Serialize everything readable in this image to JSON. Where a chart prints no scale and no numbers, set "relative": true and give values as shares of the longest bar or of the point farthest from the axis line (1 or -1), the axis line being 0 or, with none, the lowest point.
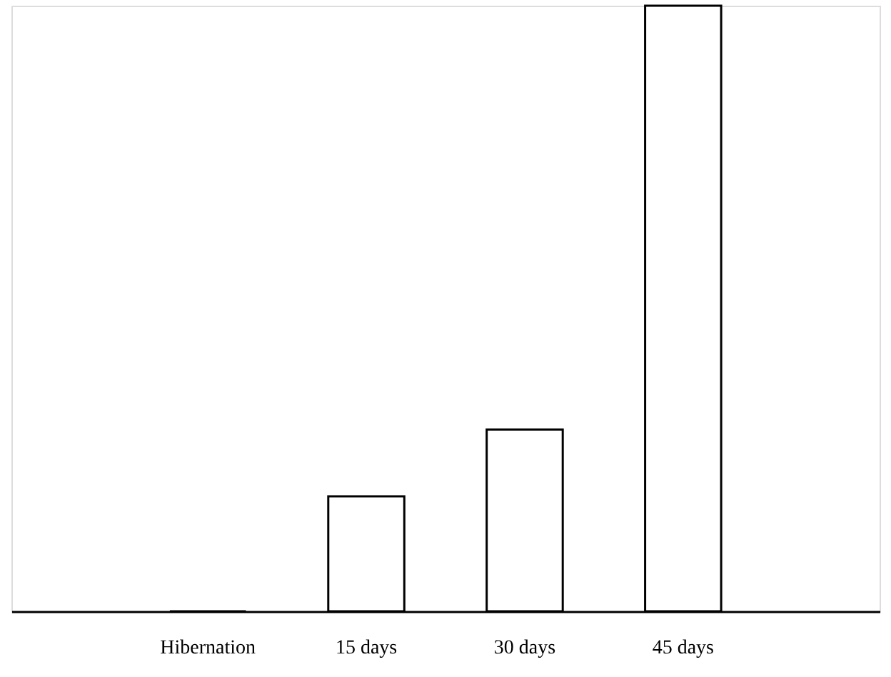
{
  "chart_data": {
    "type": "bar",
    "relative": true,
    "categories": [
      "Hibernation",
      "15 days",
      "30 days",
      "45 days"
    ],
    "values": [
      0,
      0.19,
      0.3,
      1
    ],
    "color": "#000000",
    "grid": false
  }
}
